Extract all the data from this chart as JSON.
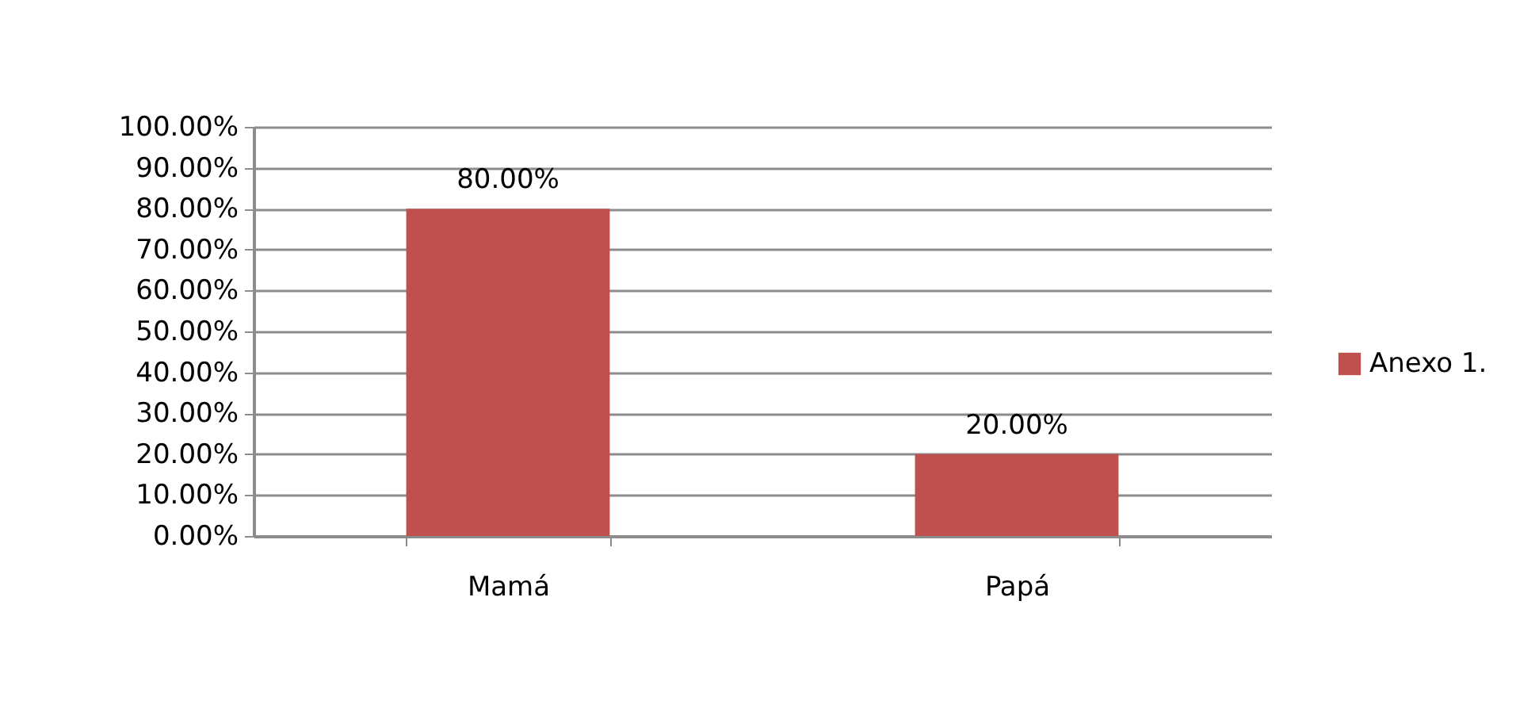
{
  "chart_data": {
    "type": "bar",
    "categories": [
      "Mamá",
      "Papá"
    ],
    "series": [
      {
        "name": "Anexo 1.",
        "color": "#c0504d",
        "values": [
          80,
          20
        ],
        "value_labels": [
          "80.00%",
          "20.00%"
        ]
      }
    ],
    "ylim": [
      0,
      100
    ],
    "yticks": [
      {
        "value": 0,
        "label": "0.00%"
      },
      {
        "value": 10,
        "label": "10.00%"
      },
      {
        "value": 20,
        "label": "20.00%"
      },
      {
        "value": 30,
        "label": "30.00%"
      },
      {
        "value": 40,
        "label": "40.00%"
      },
      {
        "value": 50,
        "label": "50.00%"
      },
      {
        "value": 60,
        "label": "60.00%"
      },
      {
        "value": 70,
        "label": "70.00%"
      },
      {
        "value": 80,
        "label": "80.00%"
      },
      {
        "value": 90,
        "label": "90.00%"
      },
      {
        "value": 100,
        "label": "100.00%"
      }
    ],
    "grid": "y",
    "legend": "right"
  }
}
